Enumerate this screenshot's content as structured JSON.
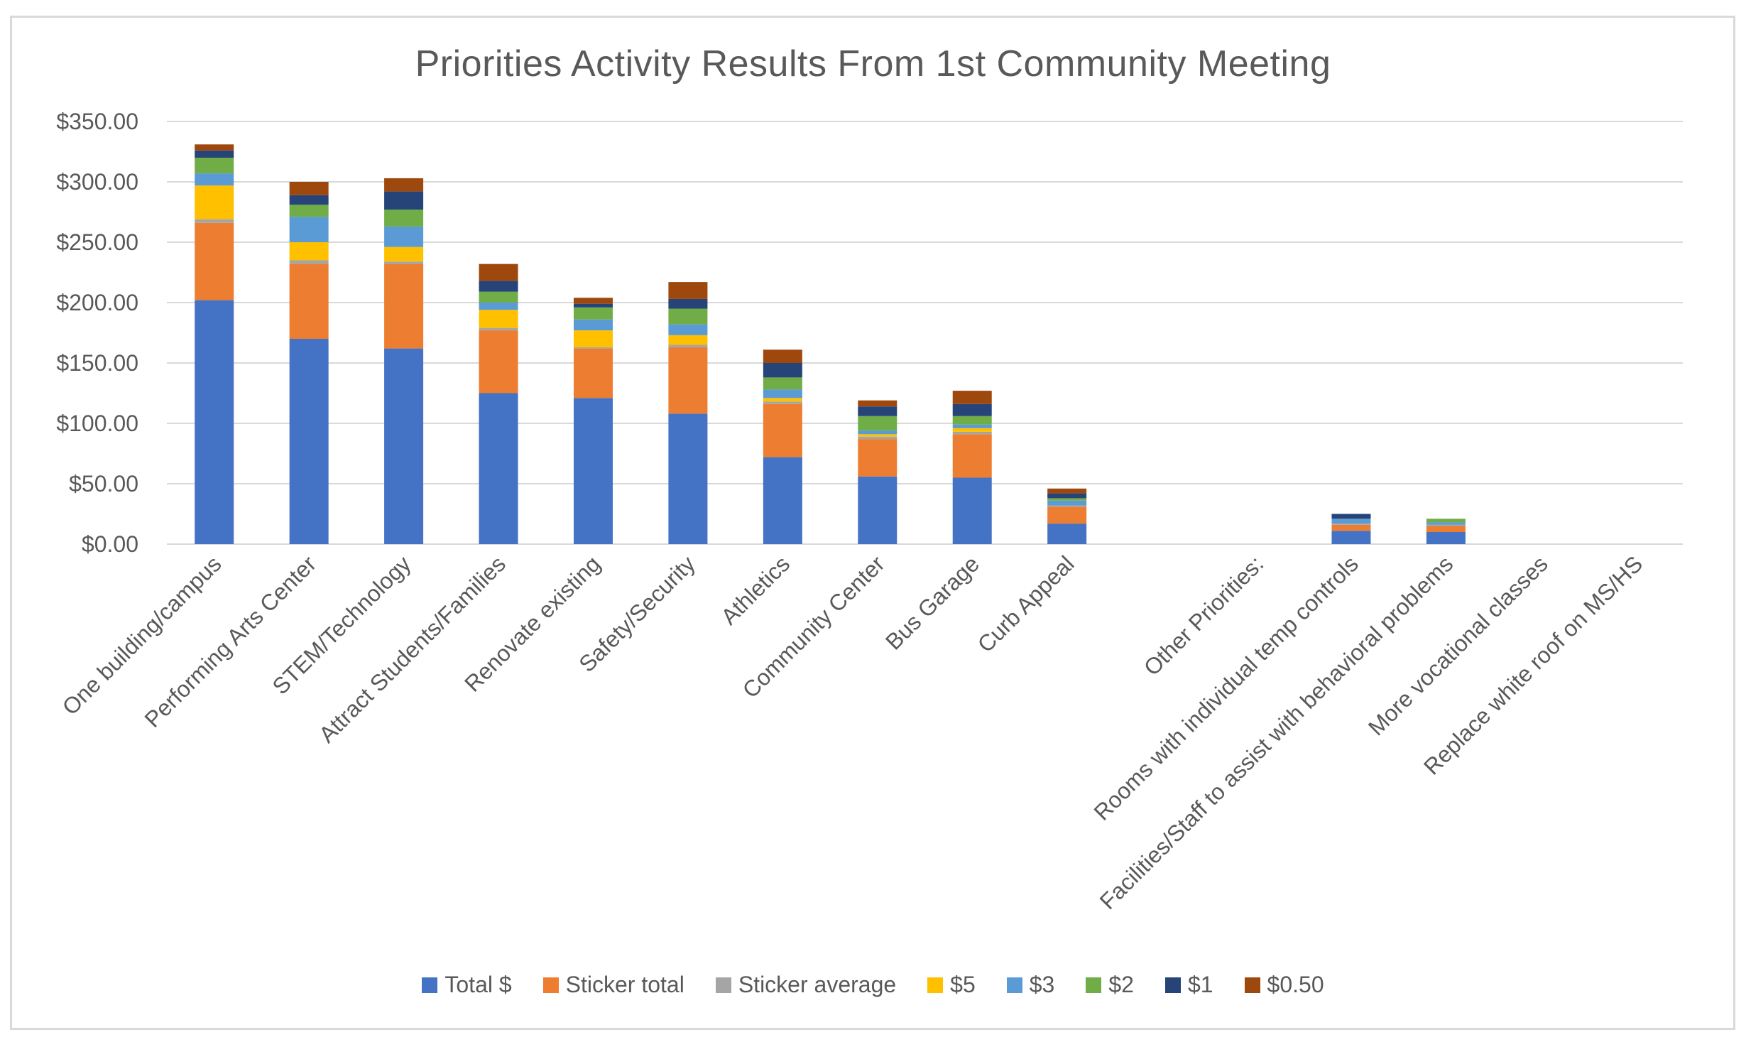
{
  "chart_data": {
    "type": "bar",
    "stacked": true,
    "title": "Priorities Activity Results From 1st Community Meeting",
    "xlabel": "",
    "ylabel": "",
    "ylim": [
      0,
      350
    ],
    "yticks": [
      "$0.00",
      "$50.00",
      "$100.00",
      "$150.00",
      "$200.00",
      "$250.00",
      "$300.00",
      "$350.00"
    ],
    "grid": true,
    "legend_position": "bottom",
    "categories": [
      "One building/campus",
      "Performing Arts Center",
      "STEM/Technology",
      "Attract Students/Families",
      "Renovate existing",
      "Safety/Security",
      "Athletics",
      "Community Center",
      "Bus Garage",
      "Curb Appeal",
      "",
      "Other Priorities:",
      "Rooms with individual temp controls",
      "Facilities/Staff to assist with behavioral problems",
      "More vocational classes",
      "Replace white roof on MS/HS"
    ],
    "series": [
      {
        "name": "Total $",
        "color": "#4472c4",
        "values": [
          202,
          170,
          162,
          125,
          121,
          108,
          72,
          56,
          55,
          17,
          0,
          0,
          11,
          10,
          0,
          0
        ]
      },
      {
        "name": "Sticker total",
        "color": "#ed7d31",
        "values": [
          64,
          62,
          70,
          52,
          41,
          55,
          44,
          31,
          36,
          14,
          0,
          0,
          5,
          5,
          0,
          0
        ]
      },
      {
        "name": "Sticker average",
        "color": "#a5a5a5",
        "values": [
          3,
          3,
          2,
          2,
          1,
          2,
          2,
          2,
          2,
          1,
          0,
          0,
          1,
          1,
          0,
          0
        ]
      },
      {
        "name": "$5",
        "color": "#ffc000",
        "values": [
          28,
          15,
          12,
          15,
          14,
          8,
          3,
          2,
          3,
          0,
          0,
          0,
          0,
          0,
          0,
          0
        ]
      },
      {
        "name": "$3",
        "color": "#5b9bd5",
        "values": [
          10,
          21,
          17,
          6,
          9,
          9,
          7,
          3,
          3,
          4,
          0,
          0,
          4,
          2,
          0,
          0
        ]
      },
      {
        "name": "$2",
        "color": "#70ad47",
        "values": [
          13,
          10,
          14,
          9,
          10,
          13,
          10,
          12,
          7,
          2,
          0,
          0,
          0,
          3,
          0,
          0
        ]
      },
      {
        "name": "$1",
        "color": "#264478",
        "values": [
          6,
          8,
          15,
          9,
          3,
          8,
          12,
          8,
          10,
          4,
          0,
          0,
          4,
          0,
          0,
          0
        ]
      },
      {
        "name": "$0.50",
        "color": "#9e480e",
        "values": [
          5,
          11,
          11,
          14,
          5,
          14,
          11,
          5,
          11,
          4,
          0,
          0,
          0,
          0,
          0,
          0
        ]
      }
    ]
  }
}
